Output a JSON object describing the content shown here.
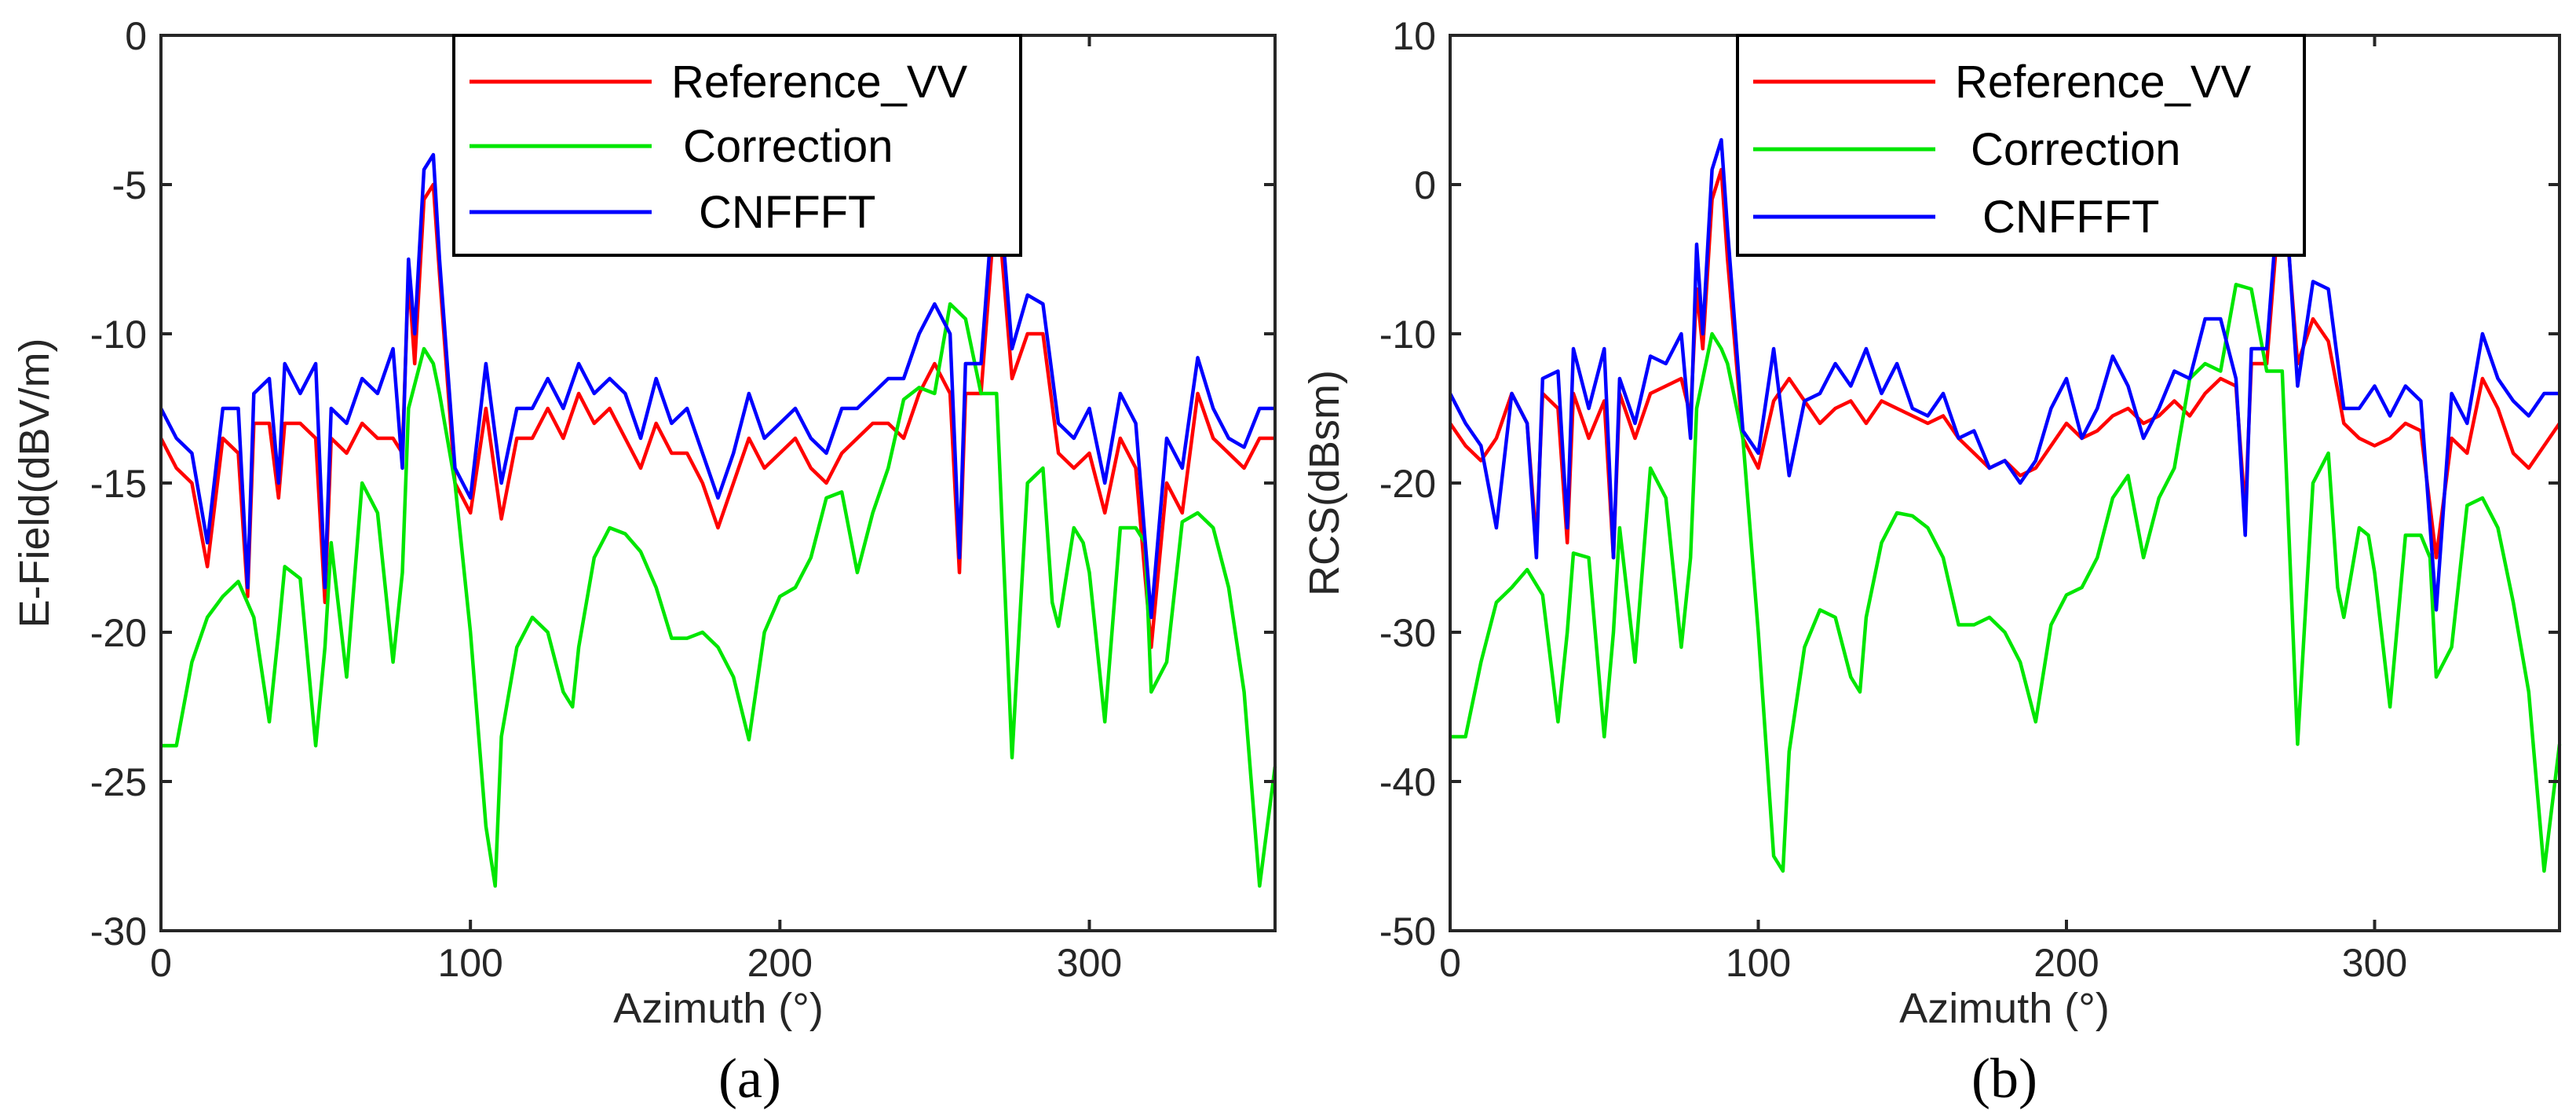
{
  "chart_data": [
    {
      "type": "line",
      "caption": "(a)",
      "title": "",
      "xlabel": "Azimuth (°)",
      "ylabel": "E-Field(dBV/m)",
      "xlim": [
        0,
        360
      ],
      "ylim": [
        -30,
        0
      ],
      "xticks": [
        0,
        100,
        200,
        300
      ],
      "yticks": [
        0,
        -5,
        -10,
        -15,
        -20,
        -25,
        -30
      ],
      "grid": false,
      "legend_position": "top-center",
      "series": [
        {
          "name": "Reference_VV",
          "color": "#ff0000",
          "x": [
            0,
            5,
            10,
            15,
            20,
            25,
            28,
            30,
            35,
            38,
            40,
            45,
            50,
            53,
            55,
            60,
            65,
            70,
            75,
            78,
            80,
            82,
            85,
            88,
            90,
            95,
            100,
            105,
            110,
            115,
            120,
            125,
            130,
            135,
            140,
            145,
            150,
            155,
            160,
            165,
            170,
            175,
            180,
            185,
            190,
            195,
            200,
            205,
            210,
            215,
            220,
            225,
            230,
            235,
            240,
            245,
            250,
            255,
            258,
            260,
            265,
            270,
            275,
            280,
            285,
            290,
            295,
            300,
            305,
            310,
            315,
            320,
            325,
            330,
            335,
            340,
            345,
            350,
            355,
            360
          ],
          "values": [
            -13.5,
            -14.5,
            -15.0,
            -17.8,
            -13.5,
            -14.0,
            -18.8,
            -13.0,
            -13.0,
            -15.5,
            -13.0,
            -13.0,
            -13.5,
            -19.0,
            -13.5,
            -14.0,
            -13.0,
            -13.5,
            -13.5,
            -14.0,
            -8.0,
            -11.0,
            -5.5,
            -5.0,
            -8.0,
            -15.0,
            -16.0,
            -12.5,
            -16.2,
            -13.5,
            -13.5,
            -12.5,
            -13.5,
            -12.0,
            -13.0,
            -12.5,
            -13.5,
            -14.5,
            -13.0,
            -14.0,
            -14.0,
            -15.0,
            -16.5,
            -15.0,
            -13.5,
            -14.5,
            -14.0,
            -13.5,
            -14.5,
            -15.0,
            -14.0,
            -13.5,
            -13.0,
            -13.0,
            -13.5,
            -12.0,
            -11.0,
            -12.0,
            -18.0,
            -12.0,
            -12.0,
            -5.2,
            -11.5,
            -10.0,
            -10.0,
            -14.0,
            -14.5,
            -14.0,
            -16.0,
            -13.5,
            -14.5,
            -20.5,
            -15.0,
            -16.0,
            -12.0,
            -13.5,
            -14.0,
            -14.5,
            -13.5,
            -13.5
          ]
        },
        {
          "name": "Correction",
          "color": "#00e600",
          "x": [
            0,
            5,
            10,
            15,
            20,
            25,
            30,
            35,
            38,
            40,
            45,
            50,
            53,
            55,
            60,
            65,
            70,
            75,
            78,
            80,
            85,
            88,
            90,
            95,
            100,
            105,
            108,
            110,
            115,
            120,
            125,
            130,
            133,
            135,
            140,
            145,
            150,
            155,
            160,
            165,
            170,
            175,
            180,
            185,
            190,
            195,
            200,
            205,
            210,
            215,
            220,
            225,
            230,
            235,
            240,
            245,
            250,
            255,
            260,
            265,
            270,
            275,
            280,
            285,
            288,
            290,
            295,
            298,
            300,
            305,
            310,
            315,
            318,
            320,
            325,
            330,
            335,
            340,
            345,
            350,
            355,
            360
          ],
          "values": [
            -23.8,
            -23.8,
            -21.0,
            -19.5,
            -18.8,
            -18.3,
            -19.5,
            -23.0,
            -20.0,
            -17.8,
            -18.2,
            -23.8,
            -20.5,
            -17.0,
            -21.5,
            -15.0,
            -16.0,
            -21.0,
            -18.0,
            -12.5,
            -10.5,
            -11.0,
            -12.0,
            -15.0,
            -20.0,
            -26.5,
            -28.5,
            -23.5,
            -20.5,
            -19.5,
            -20.0,
            -22.0,
            -22.5,
            -20.5,
            -17.5,
            -16.5,
            -16.7,
            -17.3,
            -18.5,
            -20.2,
            -20.2,
            -20.0,
            -20.5,
            -21.5,
            -23.6,
            -20.0,
            -18.8,
            -18.5,
            -17.5,
            -15.5,
            -15.3,
            -18.0,
            -16.0,
            -14.5,
            -12.2,
            -11.8,
            -12.0,
            -9.0,
            -9.5,
            -12.0,
            -12.0,
            -24.2,
            -15.0,
            -14.5,
            -19.0,
            -19.8,
            -16.5,
            -17.0,
            -18.0,
            -23.0,
            -16.5,
            -16.5,
            -17.0,
            -22.0,
            -21.0,
            -16.3,
            -16.0,
            -16.5,
            -18.5,
            -22.0,
            -28.5,
            -24.5
          ]
        },
        {
          "name": "CNFFFT",
          "color": "#0000ff",
          "x": [
            0,
            5,
            10,
            15,
            20,
            25,
            28,
            30,
            35,
            38,
            40,
            45,
            50,
            53,
            55,
            60,
            65,
            70,
            75,
            78,
            80,
            82,
            85,
            88,
            90,
            95,
            100,
            105,
            110,
            115,
            120,
            125,
            130,
            135,
            140,
            145,
            150,
            155,
            160,
            165,
            170,
            175,
            180,
            185,
            190,
            195,
            200,
            205,
            210,
            215,
            220,
            225,
            230,
            235,
            240,
            245,
            250,
            255,
            258,
            260,
            265,
            270,
            275,
            280,
            285,
            290,
            295,
            300,
            305,
            310,
            315,
            320,
            325,
            330,
            335,
            340,
            345,
            350,
            355,
            360
          ],
          "values": [
            -12.5,
            -13.5,
            -14.0,
            -17.0,
            -12.5,
            -12.5,
            -18.5,
            -12.0,
            -11.5,
            -15.0,
            -11.0,
            -12.0,
            -11.0,
            -18.5,
            -12.5,
            -13.0,
            -11.5,
            -12.0,
            -10.5,
            -14.5,
            -7.5,
            -10.0,
            -4.5,
            -4.0,
            -7.5,
            -14.5,
            -15.5,
            -11.0,
            -15.0,
            -12.5,
            -12.5,
            -11.5,
            -12.5,
            -11.0,
            -12.0,
            -11.5,
            -12.0,
            -13.5,
            -11.5,
            -13.0,
            -12.5,
            -14.0,
            -15.5,
            -14.0,
            -12.0,
            -13.5,
            -13.0,
            -12.5,
            -13.5,
            -14.0,
            -12.5,
            -12.5,
            -12.0,
            -11.5,
            -11.5,
            -10.0,
            -9.0,
            -10.0,
            -17.5,
            -11.0,
            -11.0,
            -4.1,
            -10.5,
            -8.7,
            -9.0,
            -13.0,
            -13.5,
            -12.5,
            -15.0,
            -12.0,
            -13.0,
            -19.5,
            -13.5,
            -14.5,
            -10.8,
            -12.5,
            -13.5,
            -13.8,
            -12.5,
            -12.5
          ]
        }
      ]
    },
    {
      "type": "line",
      "caption": "(b)",
      "title": "",
      "xlabel": "Azimuth (°)",
      "ylabel": "RCS(dBsm)",
      "xlim": [
        0,
        360
      ],
      "ylim": [
        -50,
        10
      ],
      "xticks": [
        0,
        100,
        200,
        300
      ],
      "yticks": [
        10,
        0,
        -10,
        -20,
        -30,
        -40,
        -50
      ],
      "grid": false,
      "legend_position": "top-center",
      "series": [
        {
          "name": "Reference_VV",
          "color": "#ff0000",
          "x": [
            0,
            5,
            10,
            15,
            20,
            25,
            28,
            30,
            35,
            38,
            40,
            45,
            50,
            53,
            55,
            60,
            65,
            70,
            75,
            78,
            80,
            82,
            85,
            88,
            90,
            95,
            100,
            105,
            110,
            115,
            120,
            125,
            130,
            135,
            140,
            145,
            150,
            155,
            160,
            165,
            170,
            175,
            180,
            185,
            190,
            195,
            200,
            205,
            210,
            215,
            220,
            225,
            230,
            235,
            240,
            245,
            250,
            255,
            258,
            260,
            265,
            270,
            275,
            280,
            285,
            290,
            295,
            300,
            305,
            310,
            315,
            320,
            325,
            330,
            335,
            340,
            345,
            350,
            355,
            360
          ],
          "values": [
            -16.0,
            -17.5,
            -18.5,
            -17.0,
            -14.0,
            -16.0,
            -24.0,
            -14.0,
            -15.0,
            -24.0,
            -14.0,
            -17.0,
            -14.5,
            -25.0,
            -14.0,
            -17.0,
            -14.0,
            -13.5,
            -13.0,
            -15.5,
            -7.0,
            -11.0,
            -1.0,
            1.0,
            -5.0,
            -17.0,
            -19.0,
            -14.5,
            -13.0,
            -14.5,
            -16.0,
            -15.0,
            -14.5,
            -16.0,
            -14.5,
            -15.0,
            -15.5,
            -16.0,
            -15.5,
            -17.0,
            -18.0,
            -19.0,
            -18.5,
            -19.5,
            -19.0,
            -17.5,
            -16.0,
            -17.0,
            -16.5,
            -15.5,
            -15.0,
            -16.0,
            -15.5,
            -14.5,
            -15.5,
            -14.0,
            -13.0,
            -13.5,
            -22.0,
            -12.0,
            -12.0,
            1.0,
            -12.0,
            -9.0,
            -10.5,
            -16.0,
            -17.0,
            -17.5,
            -17.0,
            -16.0,
            -16.5,
            -25.0,
            -17.0,
            -18.0,
            -13.0,
            -15.0,
            -18.0,
            -19.0,
            -17.5,
            -16.0
          ]
        },
        {
          "name": "Correction",
          "color": "#00e600",
          "x": [
            0,
            5,
            10,
            15,
            20,
            25,
            30,
            35,
            38,
            40,
            45,
            50,
            53,
            55,
            60,
            65,
            70,
            75,
            78,
            80,
            85,
            88,
            90,
            95,
            100,
            105,
            108,
            110,
            115,
            120,
            125,
            130,
            133,
            135,
            140,
            145,
            150,
            155,
            160,
            165,
            170,
            175,
            180,
            185,
            190,
            195,
            200,
            205,
            210,
            215,
            220,
            225,
            230,
            235,
            240,
            245,
            250,
            255,
            260,
            265,
            270,
            275,
            280,
            285,
            288,
            290,
            295,
            298,
            300,
            305,
            310,
            315,
            318,
            320,
            325,
            330,
            335,
            340,
            345,
            350,
            355,
            360
          ],
          "values": [
            -37.0,
            -37.0,
            -32.0,
            -28.0,
            -27.0,
            -25.8,
            -27.5,
            -36.0,
            -30.0,
            -24.7,
            -25.0,
            -37.0,
            -30.0,
            -23.0,
            -32.0,
            -19.0,
            -21.0,
            -31.0,
            -25.0,
            -15.0,
            -10.0,
            -11.0,
            -12.0,
            -17.0,
            -30.0,
            -45.0,
            -46.0,
            -38.0,
            -31.0,
            -28.5,
            -29.0,
            -33.0,
            -34.0,
            -29.0,
            -24.0,
            -22.0,
            -22.2,
            -23.0,
            -25.0,
            -29.5,
            -29.5,
            -29.0,
            -30.0,
            -32.0,
            -36.0,
            -29.5,
            -27.5,
            -27.0,
            -25.0,
            -21.0,
            -19.5,
            -25.0,
            -21.0,
            -19.0,
            -13.0,
            -12.0,
            -12.5,
            -6.7,
            -7.0,
            -12.5,
            -12.5,
            -37.5,
            -20.0,
            -18.0,
            -27.0,
            -29.0,
            -23.0,
            -23.5,
            -26.0,
            -35.0,
            -23.5,
            -23.5,
            -25.0,
            -33.0,
            -31.0,
            -21.5,
            -21.0,
            -23.0,
            -28.0,
            -34.0,
            -46.0,
            -37.5
          ]
        },
        {
          "name": "CNFFFT",
          "color": "#0000ff",
          "x": [
            0,
            5,
            10,
            15,
            20,
            25,
            28,
            30,
            35,
            38,
            40,
            45,
            50,
            53,
            55,
            60,
            65,
            70,
            75,
            78,
            80,
            82,
            85,
            88,
            90,
            95,
            100,
            105,
            110,
            115,
            120,
            125,
            130,
            135,
            140,
            145,
            150,
            155,
            160,
            165,
            170,
            175,
            180,
            185,
            190,
            195,
            200,
            205,
            210,
            215,
            220,
            225,
            230,
            235,
            240,
            245,
            250,
            255,
            258,
            260,
            265,
            270,
            275,
            280,
            285,
            290,
            295,
            300,
            305,
            310,
            315,
            320,
            325,
            330,
            335,
            340,
            345,
            350,
            355,
            360
          ],
          "values": [
            -14.0,
            -16.0,
            -17.5,
            -23.0,
            -14.0,
            -16.0,
            -25.0,
            -13.0,
            -12.5,
            -23.0,
            -11.0,
            -15.0,
            -11.0,
            -25.0,
            -13.0,
            -16.0,
            -11.5,
            -12.0,
            -10.0,
            -17.0,
            -4.0,
            -10.0,
            1.0,
            3.0,
            -3.0,
            -16.5,
            -18.0,
            -11.0,
            -19.5,
            -14.5,
            -14.0,
            -12.0,
            -13.5,
            -11.0,
            -14.0,
            -12.0,
            -15.0,
            -15.5,
            -14.0,
            -17.0,
            -16.5,
            -19.0,
            -18.5,
            -20.0,
            -18.5,
            -15.0,
            -13.0,
            -17.0,
            -15.0,
            -11.5,
            -13.5,
            -17.0,
            -15.0,
            -12.5,
            -13.0,
            -9.0,
            -9.0,
            -13.0,
            -23.5,
            -11.0,
            -11.0,
            2.5,
            -13.5,
            -6.5,
            -7.0,
            -15.0,
            -15.0,
            -13.5,
            -15.5,
            -13.5,
            -14.5,
            -28.5,
            -14.0,
            -16.0,
            -10.0,
            -13.0,
            -14.5,
            -15.5,
            -14.0,
            -14.0
          ]
        }
      ]
    }
  ]
}
